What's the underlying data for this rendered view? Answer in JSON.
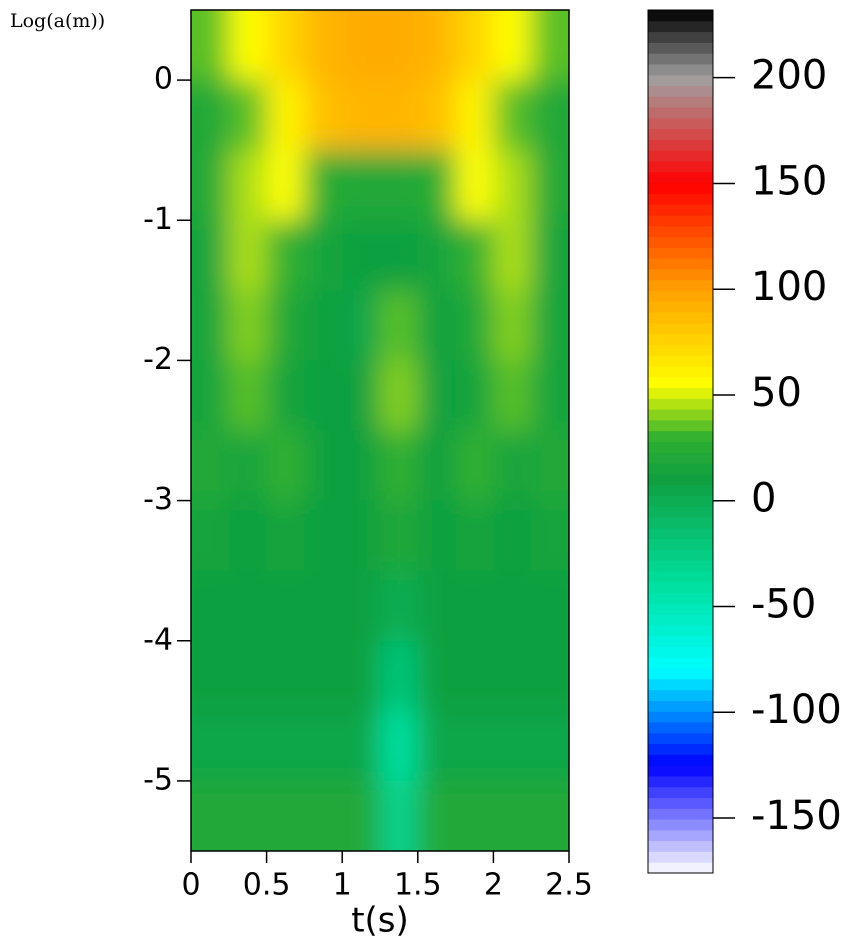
{
  "chart_data": {
    "type": "heatmap",
    "ylabel": "Log(a(m))",
    "xlabel": "t(s)",
    "x": [
      0.125,
      0.375,
      0.625,
      0.875,
      1.125,
      1.375,
      1.625,
      1.875,
      2.125,
      2.375
    ],
    "y": [
      0.25,
      -0.25,
      -0.75,
      -1.25,
      -1.75,
      -2.25,
      -2.75,
      -3.25,
      -3.75,
      -4.25,
      -4.75,
      -5.25
    ],
    "z": [
      [
        35,
        55,
        75,
        90,
        95,
        95,
        90,
        75,
        55,
        35
      ],
      [
        20,
        35,
        60,
        85,
        90,
        90,
        85,
        60,
        35,
        20
      ],
      [
        20,
        45,
        55,
        25,
        20,
        20,
        25,
        55,
        45,
        20
      ],
      [
        15,
        45,
        30,
        15,
        10,
        10,
        15,
        30,
        45,
        15
      ],
      [
        15,
        40,
        20,
        10,
        5,
        35,
        10,
        20,
        40,
        15
      ],
      [
        15,
        35,
        15,
        10,
        10,
        40,
        10,
        15,
        35,
        15
      ],
      [
        20,
        15,
        30,
        10,
        10,
        30,
        10,
        30,
        15,
        20
      ],
      [
        15,
        10,
        15,
        10,
        10,
        20,
        10,
        15,
        10,
        15
      ],
      [
        10,
        10,
        10,
        10,
        10,
        0,
        10,
        10,
        10,
        10
      ],
      [
        10,
        10,
        10,
        10,
        10,
        -20,
        10,
        10,
        10,
        10
      ],
      [
        5,
        5,
        5,
        5,
        5,
        -40,
        5,
        5,
        5,
        5
      ],
      [
        20,
        20,
        20,
        20,
        20,
        -30,
        20,
        20,
        20,
        20
      ]
    ],
    "xlim": [
      0,
      2.5
    ],
    "xticks": [
      0,
      0.5,
      1,
      1.5,
      2,
      2.5
    ],
    "ylim": [
      -5.5,
      0.5
    ],
    "yticks": [
      0,
      -1,
      -2,
      -3,
      -4,
      -5
    ],
    "clim": [
      -176,
      232
    ],
    "cticks": [
      200,
      150,
      100,
      50,
      0,
      -50,
      -100,
      -150
    ],
    "colormap": [
      {
        "value": -176,
        "color": "#ffffff"
      },
      {
        "value": -125,
        "color": "#0000ff"
      },
      {
        "value": -80,
        "color": "#00ffff"
      },
      {
        "value": -40,
        "color": "#00e0a0"
      },
      {
        "value": 10,
        "color": "#10a040"
      },
      {
        "value": 30,
        "color": "#30b030"
      },
      {
        "value": 55,
        "color": "#ffff00"
      },
      {
        "value": 100,
        "color": "#ffa000"
      },
      {
        "value": 150,
        "color": "#ff0000"
      },
      {
        "value": 200,
        "color": "#a0a0a0"
      },
      {
        "value": 232,
        "color": "#000000"
      }
    ]
  }
}
